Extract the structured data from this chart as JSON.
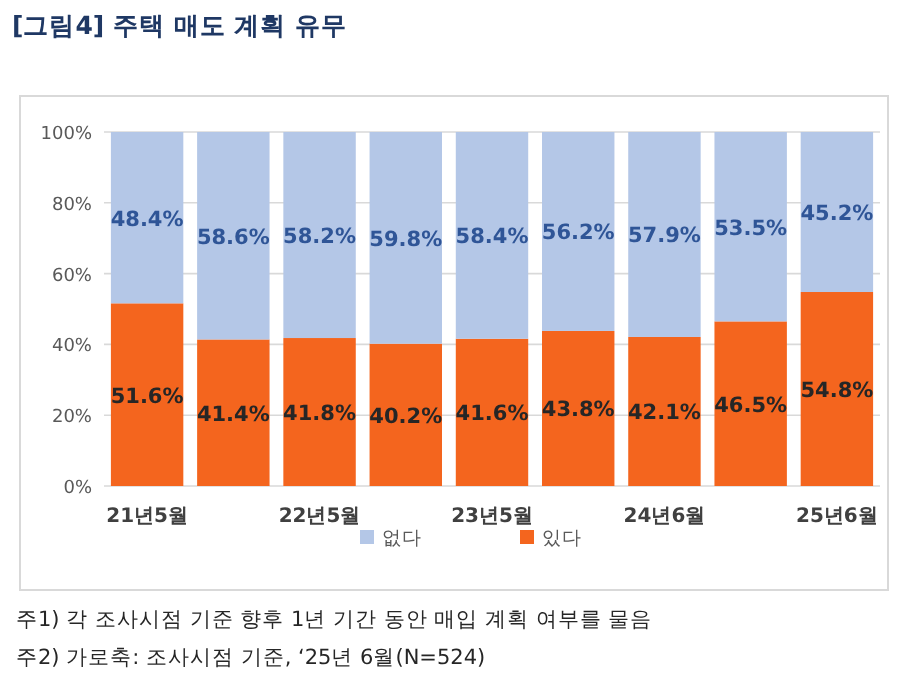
{
  "chart_data": {
    "type": "bar",
    "title": "[그림4] 주택 매도 계획 유무",
    "stacked": true,
    "categories": [
      "21년5월",
      null,
      "22년5월",
      null,
      "23년5월",
      null,
      "24년6월",
      null,
      "25년6월"
    ],
    "series": [
      {
        "name": "있다",
        "color": "#f4651e",
        "values": [
          51.6,
          41.4,
          41.8,
          40.2,
          41.6,
          43.8,
          42.1,
          46.5,
          54.8
        ],
        "value_labels": [
          "51.6%",
          "41.4%",
          "41.8%",
          "40.2%",
          "41.6%",
          "43.8%",
          "42.1%",
          "46.5%",
          "54.8%"
        ]
      },
      {
        "name": "없다",
        "color": "#b4c7e7",
        "values": [
          48.4,
          58.6,
          58.2,
          59.8,
          58.4,
          56.2,
          57.9,
          53.5,
          45.2
        ],
        "value_labels": [
          "48.4%",
          "58.6%",
          "58.2%",
          "59.8%",
          "58.4%",
          "56.2%",
          "57.9%",
          "53.5%",
          "45.2%"
        ]
      }
    ],
    "ylim": [
      0,
      100
    ],
    "yticks": [
      {
        "value": 0,
        "label": "0%"
      },
      {
        "value": 20,
        "label": "20%"
      },
      {
        "value": 40,
        "label": "40%"
      },
      {
        "value": 60,
        "label": "60%"
      },
      {
        "value": 80,
        "label": "80%"
      },
      {
        "value": 100,
        "label": "100%"
      }
    ],
    "grid": "y",
    "legend": "bottom",
    "annotations": [
      "주1) 각 조사시점 기준 향후 1년 기간 동안 매입 계획 여부를 물음",
      "주2) 가로축: 조사시점 기준, ‘25년 6월(N=524)"
    ]
  }
}
